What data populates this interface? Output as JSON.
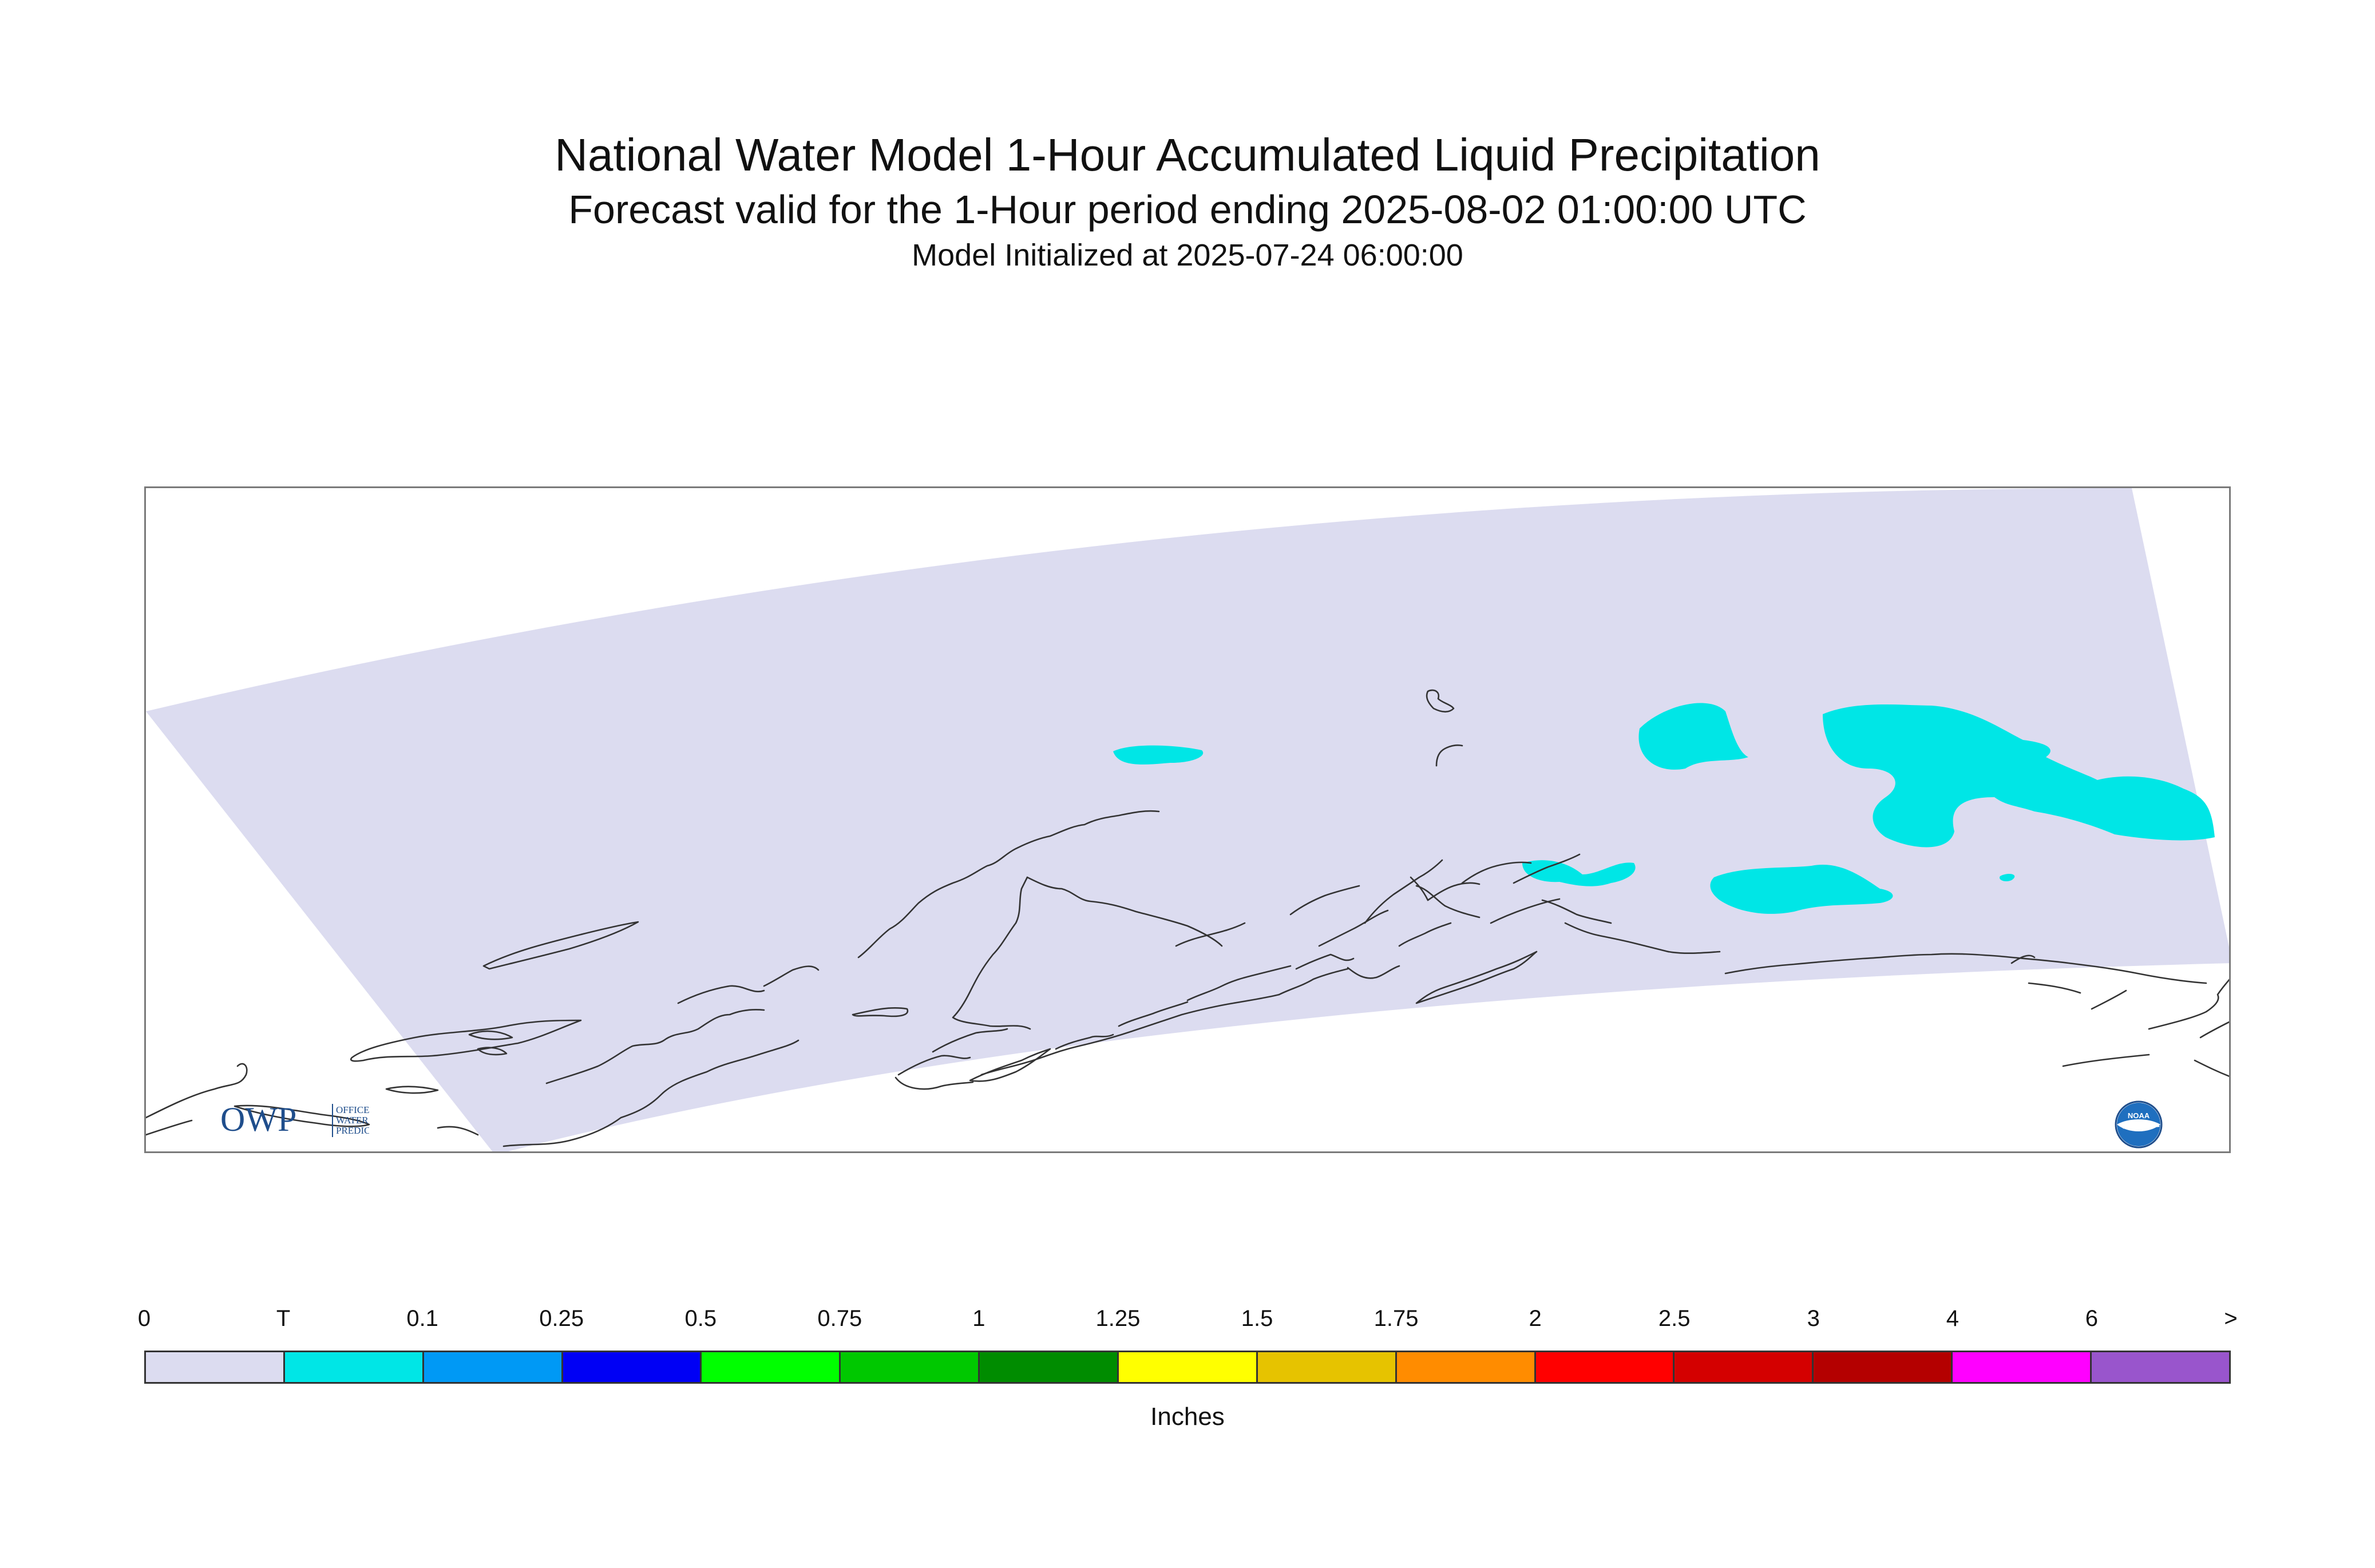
{
  "header": {
    "title": "National Water Model 1-Hour Accumulated Liquid Precipitation",
    "subtitle": "Forecast valid for the 1-Hour period ending 2025-08-02 01:00:00 UTC",
    "initialized": "Model Initialized at 2025-07-24 06:00:00"
  },
  "map": {
    "domain_fill_color": "#dcdcf0",
    "precip_color": "#00e6e6",
    "coastline_color": "#333333",
    "frame_color": "#7a7a7a",
    "region": "Alaska",
    "logos": {
      "owp": {
        "mark": "OWP",
        "line1": "OFFICE OF",
        "line2": "WATER",
        "line3": "PREDICTION",
        "color": "#1f4e8c"
      },
      "noaa": {
        "mark": "NOAA",
        "color": "#1f6fbf"
      }
    }
  },
  "legend": {
    "labels": [
      "0",
      "T",
      "0.1",
      "0.25",
      "0.5",
      "0.75",
      "1",
      "1.25",
      "1.5",
      "1.75",
      "2",
      "2.5",
      "3",
      "4",
      "6",
      ">"
    ],
    "colors": [
      "#dcdcf0",
      "#00e6e6",
      "#0099f5",
      "#0000f5",
      "#00ff00",
      "#00c800",
      "#008c00",
      "#ffff00",
      "#e6c300",
      "#ff8c00",
      "#ff0000",
      "#d40000",
      "#b40000",
      "#ff00ff",
      "#9955cc"
    ],
    "units": "Inches"
  }
}
